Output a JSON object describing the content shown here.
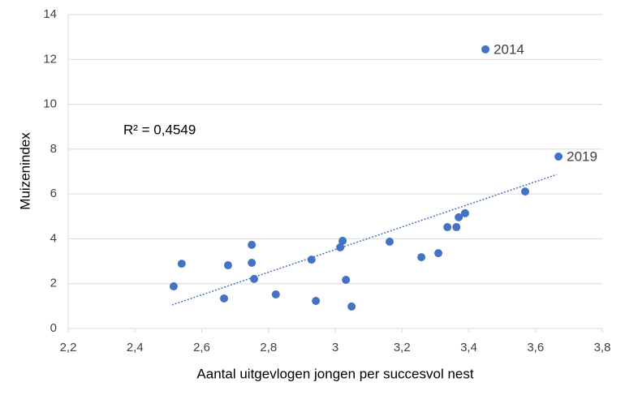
{
  "chart_data": {
    "type": "scatter",
    "x_label": "Aantal uitgevlogen jongen per succesvol nest",
    "y_label": "Muizenindex",
    "xlim": [
      2.2,
      3.8
    ],
    "xticks": [
      {
        "value": 2.2,
        "label": "2,2"
      },
      {
        "value": 2.4,
        "label": "2,4"
      },
      {
        "value": 2.6,
        "label": "2,6"
      },
      {
        "value": 2.8,
        "label": "2,8"
      },
      3,
      {
        "value": 3.2,
        "label": "3,2"
      },
      {
        "value": 3.4,
        "label": "3,4"
      },
      {
        "value": 3.6,
        "label": "3,6"
      },
      {
        "value": 3.8,
        "label": "3,8"
      }
    ],
    "ylim": [
      0,
      14
    ],
    "yticks": [
      0,
      2,
      4,
      6,
      8,
      10,
      12,
      14
    ],
    "grid": true,
    "color": "#4472c4",
    "x": [
      2.516,
      2.54,
      2.667,
      2.679,
      2.75,
      2.75,
      2.757,
      2.822,
      2.929,
      2.942,
      3.015,
      3.022,
      3.032,
      3.049,
      3.163,
      3.258,
      3.309,
      3.336,
      3.363,
      3.37,
      3.389,
      3.45,
      3.569,
      3.669
    ],
    "values": [
      1.88,
      2.89,
      1.34,
      2.82,
      3.73,
      2.93,
      2.21,
      1.52,
      3.07,
      1.23,
      3.62,
      3.91,
      2.17,
      0.98,
      3.87,
      3.18,
      3.36,
      4.52,
      4.52,
      4.96,
      5.14,
      12.45,
      6.11,
      7.67
    ],
    "trendline": {
      "x": [
        2.511,
        3.664
      ],
      "values": [
        1.05,
        6.87
      ]
    },
    "r_squared_label": "R² = 0,4549",
    "annotations": [
      {
        "text": "2014",
        "x": 3.45,
        "y": 12.45
      },
      {
        "text": "2019",
        "x": 3.669,
        "y": 7.67
      }
    ]
  }
}
